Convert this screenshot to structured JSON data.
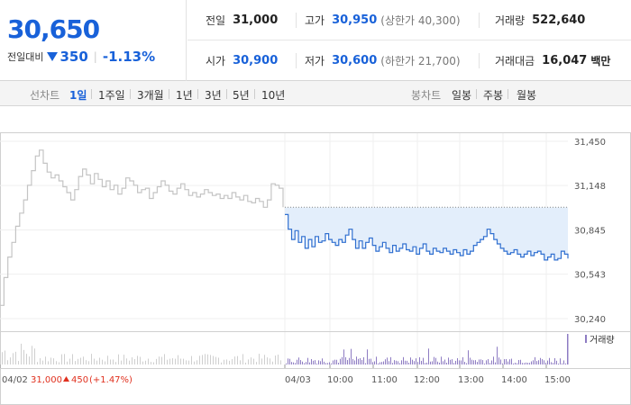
{
  "summary": {
    "current_price": "30,650",
    "change_label": "전일대비",
    "change_amount": "350",
    "change_percent": "-1.13%",
    "prev_close_label": "전일",
    "prev_close": "31,000",
    "open_label": "시가",
    "open": "30,900",
    "high_label": "고가",
    "high": "30,950",
    "upper_limit": "(상한가 40,300)",
    "low_label": "저가",
    "low": "30,600",
    "lower_limit": "(하한가 21,700)",
    "volume_label": "거래량",
    "volume": "522,640",
    "amount_label": "거래대금",
    "amount": "16,047",
    "amount_unit": "백만"
  },
  "line_tabs": {
    "label": "선차트",
    "items": [
      "1일",
      "1주일",
      "3개월",
      "1년",
      "3년",
      "5년",
      "10년"
    ],
    "active_index": 0
  },
  "candle_tabs": {
    "label": "봉차트",
    "items": [
      "일봉",
      "주봉",
      "월봉"
    ]
  },
  "colors": {
    "accent": "#1861d9",
    "rise": "#e0301e",
    "prev_day_line": "#c4c4c4",
    "today_line": "#2f6fd0",
    "band_fill": "#e3eefb",
    "volume_bar": "#8e7cc3"
  },
  "chart_data": {
    "type": "line",
    "y_ticks": [
      "31,450",
      "31,148",
      "30,845",
      "30,543",
      "30,240"
    ],
    "ylim": [
      30240,
      31450
    ],
    "x_tick_labels": [
      "04/02",
      "04/03",
      "10:00",
      "11:00",
      "12:00",
      "13:00",
      "14:00",
      "15:00"
    ],
    "prev_day_footer": {
      "date": "04/02",
      "close": "31,000",
      "change": "450",
      "change_pct": "(+1.47%)"
    },
    "volume_legend": "거래량",
    "reference_price": 31000,
    "series": [
      {
        "day": "04/02",
        "values": [
          30330,
          30520,
          30660,
          30760,
          30870,
          30960,
          31050,
          31150,
          31250,
          31350,
          31390,
          31300,
          31240,
          31200,
          31220,
          31180,
          31140,
          31100,
          31050,
          31120,
          31210,
          31260,
          31220,
          31160,
          31230,
          31190,
          31140,
          31180,
          31120,
          31150,
          31090,
          31130,
          31200,
          31180,
          31150,
          31100,
          31120,
          31130,
          31060,
          31100,
          31140,
          31180,
          31150,
          31110,
          31090,
          31130,
          31160,
          31120,
          31080,
          31100,
          31070,
          31090,
          31120,
          31100,
          31080,
          31090,
          31060,
          31080,
          31060,
          31100,
          31070,
          31050,
          31080,
          31040,
          31030,
          31060,
          31040,
          31000,
          31050,
          31160,
          31150,
          31130,
          31000
        ]
      },
      {
        "day": "04/03",
        "values": [
          30950,
          30850,
          30780,
          30840,
          30760,
          30800,
          30720,
          30780,
          30730,
          30800,
          30760,
          30770,
          30820,
          30780,
          30760,
          30740,
          30780,
          30760,
          30810,
          30850,
          30780,
          30720,
          30770,
          30720,
          30760,
          30790,
          30740,
          30700,
          30730,
          30760,
          30720,
          30690,
          30740,
          30700,
          30720,
          30750,
          30710,
          30700,
          30730,
          30680,
          30720,
          30750,
          30700,
          30680,
          30720,
          30700,
          30690,
          30720,
          30700,
          30680,
          30710,
          30690,
          30670,
          30710,
          30680,
          30700,
          30740,
          30760,
          30780,
          30800,
          30850,
          30820,
          30780,
          30750,
          30720,
          30700,
          30680,
          30690,
          30710,
          30680,
          30660,
          30680,
          30700,
          30670,
          30690,
          30700,
          30680,
          30640,
          30660,
          30680,
          30640,
          30650,
          30700,
          30680,
          30650
        ]
      }
    ]
  }
}
